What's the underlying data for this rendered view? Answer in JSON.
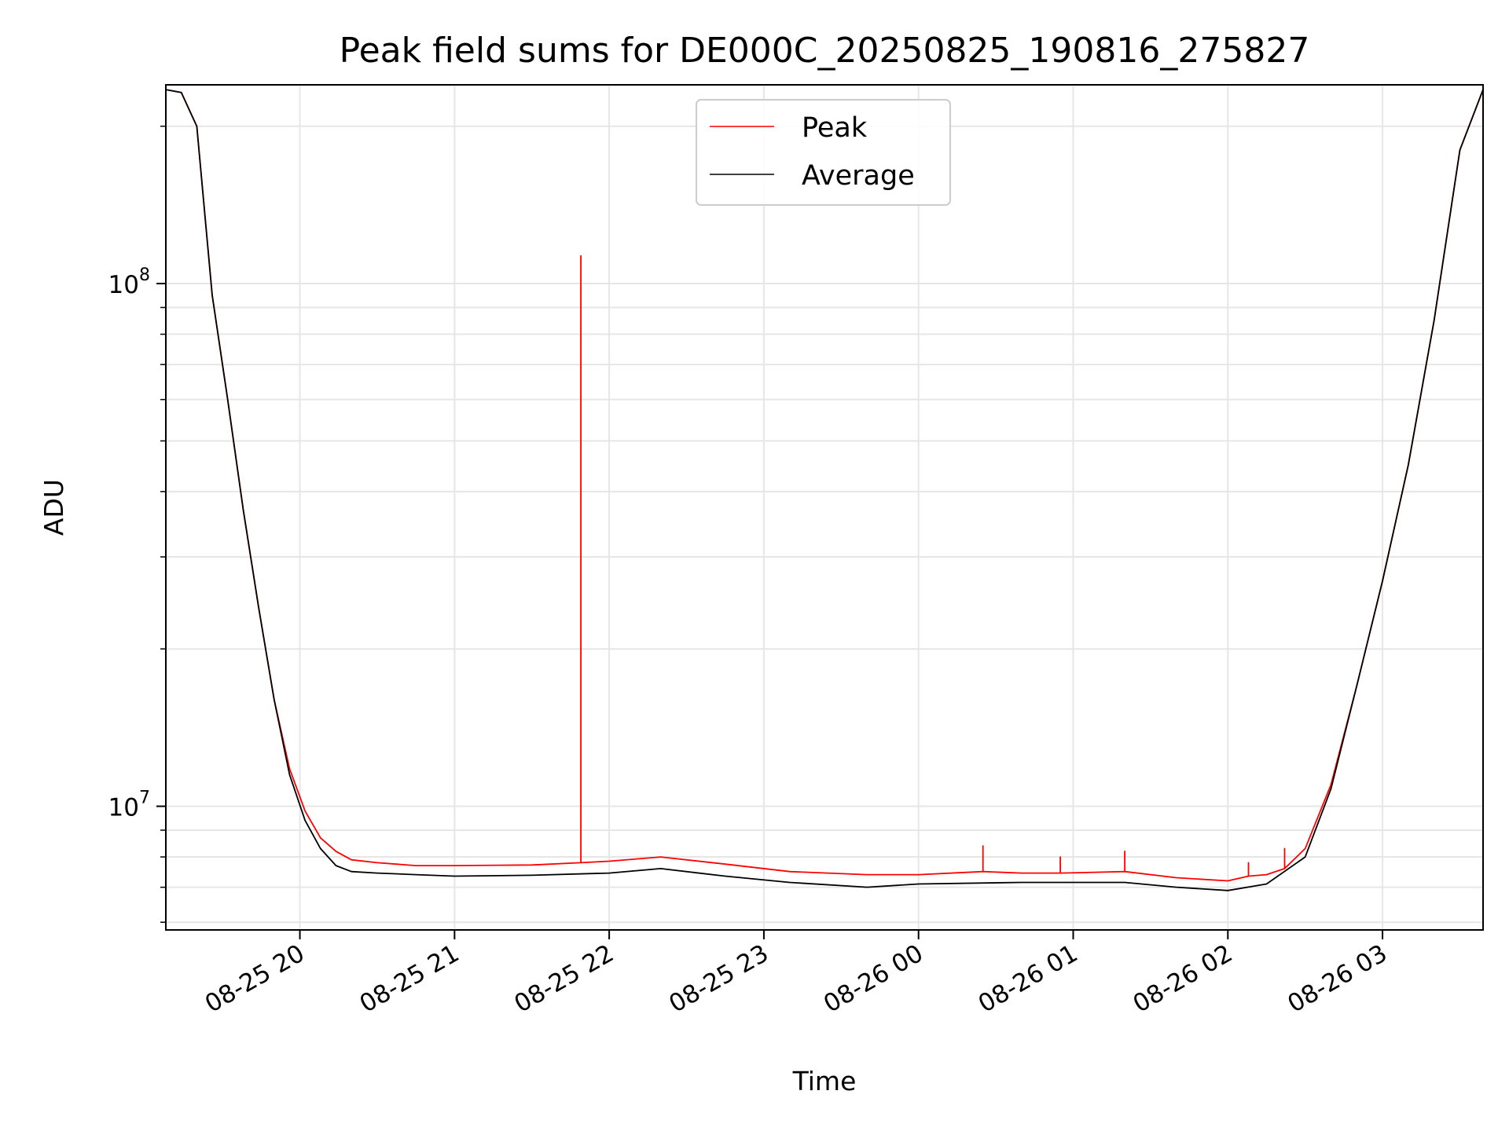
{
  "chart_data": {
    "type": "line",
    "title": "Peak field sums for DE000C_20250825_190816_275827",
    "xlabel": "Time",
    "ylabel": "ADU",
    "y_scale": "log",
    "ylim": [
      5800000,
      240000000
    ],
    "xlim": [
      "2025-08-25 19:08",
      "2025-08-26 03:39"
    ],
    "grid": true,
    "legend_position": "top-center",
    "x_ticks": [
      {
        "t": "2025-08-25 20:00",
        "label": "08-25 20"
      },
      {
        "t": "2025-08-25 21:00",
        "label": "08-25 21"
      },
      {
        "t": "2025-08-25 22:00",
        "label": "08-25 22"
      },
      {
        "t": "2025-08-25 23:00",
        "label": "08-25 23"
      },
      {
        "t": "2025-08-26 00:00",
        "label": "08-26 00"
      },
      {
        "t": "2025-08-26 01:00",
        "label": "08-26 01"
      },
      {
        "t": "2025-08-26 02:00",
        "label": "08-26 02"
      },
      {
        "t": "2025-08-26 03:00",
        "label": "08-26 03"
      }
    ],
    "y_ticks": [
      {
        "value": 10000000,
        "base": "10",
        "exp": "7"
      },
      {
        "value": 100000000,
        "base": "10",
        "exp": "8"
      }
    ],
    "series": [
      {
        "name": "Peak",
        "color": "#ff0000",
        "t": [
          "2025-08-25 19:08",
          "2025-08-25 19:14",
          "2025-08-25 19:20",
          "2025-08-25 19:26",
          "2025-08-25 19:32",
          "2025-08-25 19:38",
          "2025-08-25 19:44",
          "2025-08-25 19:50",
          "2025-08-25 19:56",
          "2025-08-25 20:02",
          "2025-08-25 20:08",
          "2025-08-25 20:14",
          "2025-08-25 20:20",
          "2025-08-25 20:30",
          "2025-08-25 20:45",
          "2025-08-25 21:00",
          "2025-08-25 21:30",
          "2025-08-25 21:49",
          "2025-08-25 21:49",
          "2025-08-25 21:49",
          "2025-08-25 22:00",
          "2025-08-25 22:20",
          "2025-08-25 22:45",
          "2025-08-25 23:10",
          "2025-08-25 23:40",
          "2025-08-26 00:00",
          "2025-08-26 00:25",
          "2025-08-26 00:25",
          "2025-08-26 00:25",
          "2025-08-26 00:40",
          "2025-08-26 00:55",
          "2025-08-26 00:55",
          "2025-08-26 00:55",
          "2025-08-26 01:20",
          "2025-08-26 01:20",
          "2025-08-26 01:20",
          "2025-08-26 01:40",
          "2025-08-26 02:00",
          "2025-08-26 02:08",
          "2025-08-26 02:08",
          "2025-08-26 02:08",
          "2025-08-26 02:15",
          "2025-08-26 02:22",
          "2025-08-26 02:22",
          "2025-08-26 02:22",
          "2025-08-26 02:30",
          "2025-08-26 02:40",
          "2025-08-26 02:50",
          "2025-08-26 03:00",
          "2025-08-26 03:10",
          "2025-08-26 03:20",
          "2025-08-26 03:30",
          "2025-08-26 03:39"
        ],
        "values": [
          235000000,
          232000000,
          200000000,
          95000000,
          60000000,
          37000000,
          24000000,
          16000000,
          11800000,
          9800000,
          8700000,
          8200000,
          7900000,
          7800000,
          7700000,
          7700000,
          7720000,
          7800000,
          113000000,
          7800000,
          7850000,
          8000000,
          7750000,
          7500000,
          7400000,
          7400000,
          7500000,
          8400000,
          7500000,
          7450000,
          7450000,
          8000000,
          7450000,
          7500000,
          8200000,
          7500000,
          7300000,
          7200000,
          7350000,
          7800000,
          7350000,
          7400000,
          7600000,
          8300000,
          7600000,
          8300000,
          11000000,
          17000000,
          27000000,
          45000000,
          85000000,
          180000000,
          235000000
        ]
      },
      {
        "name": "Average",
        "color": "#000000",
        "t": [
          "2025-08-25 19:08",
          "2025-08-25 19:14",
          "2025-08-25 19:20",
          "2025-08-25 19:26",
          "2025-08-25 19:32",
          "2025-08-25 19:38",
          "2025-08-25 19:44",
          "2025-08-25 19:50",
          "2025-08-25 19:56",
          "2025-08-25 20:02",
          "2025-08-25 20:08",
          "2025-08-25 20:14",
          "2025-08-25 20:20",
          "2025-08-25 20:30",
          "2025-08-25 20:45",
          "2025-08-25 21:00",
          "2025-08-25 21:30",
          "2025-08-25 22:00",
          "2025-08-25 22:20",
          "2025-08-25 22:45",
          "2025-08-25 23:10",
          "2025-08-25 23:40",
          "2025-08-26 00:00",
          "2025-08-26 00:40",
          "2025-08-26 01:20",
          "2025-08-26 01:40",
          "2025-08-26 02:00",
          "2025-08-26 02:15",
          "2025-08-26 02:30",
          "2025-08-26 02:40",
          "2025-08-26 02:50",
          "2025-08-26 03:00",
          "2025-08-26 03:10",
          "2025-08-26 03:20",
          "2025-08-26 03:30",
          "2025-08-26 03:39"
        ],
        "values": [
          235000000,
          232000000,
          200000000,
          95000000,
          60000000,
          37000000,
          24000000,
          16000000,
          11500000,
          9400000,
          8300000,
          7700000,
          7500000,
          7450000,
          7400000,
          7350000,
          7380000,
          7450000,
          7600000,
          7350000,
          7150000,
          7000000,
          7100000,
          7150000,
          7150000,
          7000000,
          6900000,
          7100000,
          8000000,
          10800000,
          17000000,
          27000000,
          45000000,
          85000000,
          180000000,
          235000000
        ]
      }
    ]
  }
}
